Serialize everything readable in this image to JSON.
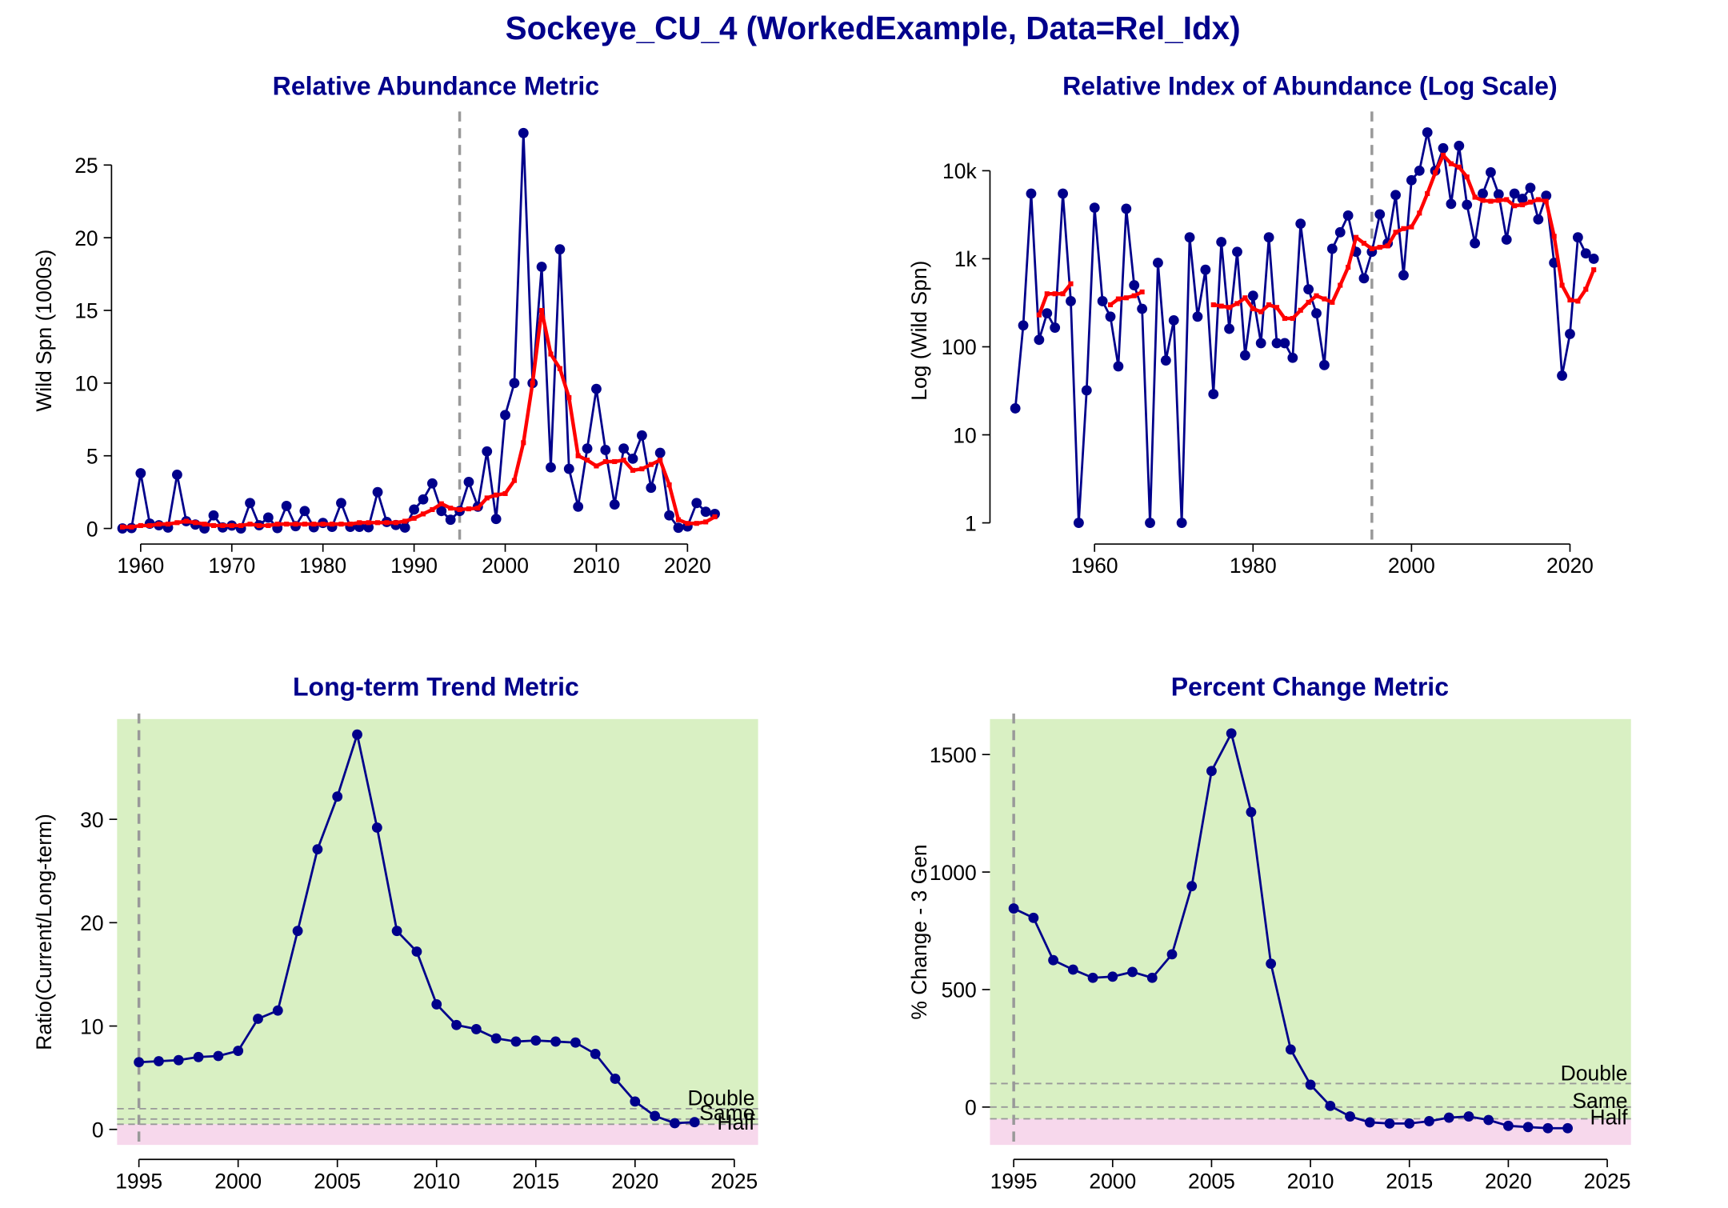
{
  "title": "Sockeye_CU_4 (WorkedExample, Data=Rel_Idx)",
  "chart_data": [
    {
      "type": "line",
      "title": "Relative Abundance Metric",
      "ylabel": "Wild Spn (1000s)",
      "x": [
        1958,
        1959,
        1960,
        1961,
        1962,
        1963,
        1964,
        1965,
        1966,
        1967,
        1968,
        1969,
        1970,
        1971,
        1972,
        1973,
        1974,
        1975,
        1976,
        1977,
        1978,
        1979,
        1980,
        1981,
        1982,
        1983,
        1984,
        1985,
        1986,
        1987,
        1988,
        1989,
        1990,
        1991,
        1992,
        1993,
        1994,
        1995,
        1996,
        1997,
        1998,
        1999,
        2000,
        2001,
        2002,
        2003,
        2004,
        2005,
        2006,
        2007,
        2008,
        2009,
        2010,
        2011,
        2012,
        2013,
        2014,
        2015,
        2016,
        2017,
        2018,
        2019,
        2020,
        2021,
        2022,
        2023
      ],
      "series": [
        {
          "color": "#00008b",
          "marker": "circle",
          "values": [
            0,
            0.03,
            3.8,
            0.33,
            0.22,
            0.06,
            3.7,
            0.5,
            0.27,
            0,
            0.9,
            0.07,
            0.2,
            0,
            1.75,
            0.22,
            0.75,
            0.03,
            1.55,
            0.16,
            1.2,
            0.08,
            0.38,
            0.11,
            1.75,
            0.11,
            0.11,
            0.08,
            2.5,
            0.45,
            0.24,
            0.06,
            1.3,
            2.0,
            3.1,
            1.2,
            0.6,
            1.2,
            3.2,
            1.5,
            5.3,
            0.65,
            7.8,
            10,
            27.2,
            10,
            18,
            4.2,
            19.2,
            4.1,
            1.5,
            5.5,
            9.6,
            5.4,
            1.65,
            5.5,
            4.8,
            6.4,
            2.8,
            5.2,
            0.9,
            0.05,
            0.14,
            1.75,
            1.15,
            1.0
          ]
        },
        {
          "color": "#ff0000",
          "marker": "square",
          "values": [
            0.1,
            0.1,
            0.2,
            0.2,
            0.3,
            0.3,
            0.4,
            0.5,
            0.4,
            0.3,
            0.2,
            0.2,
            0.2,
            0.2,
            0.3,
            0.2,
            0.2,
            0.3,
            0.3,
            0.3,
            0.3,
            0.3,
            0.3,
            0.3,
            0.3,
            0.3,
            0.4,
            0.4,
            0.4,
            0.4,
            0.4,
            0.5,
            0.7,
            1.0,
            1.3,
            1.7,
            1.4,
            1.3,
            1.35,
            1.4,
            2.1,
            2.3,
            2.4,
            3.3,
            5.9,
            10,
            15,
            12,
            11,
            9,
            5,
            4.7,
            4.3,
            4.6,
            4.6,
            4.7,
            4.0,
            4.1,
            4.4,
            4.7,
            3.0,
            0.6,
            0.35,
            0.35,
            0.45,
            0.8
          ]
        }
      ],
      "xlim": [
        1956.8,
        2025.3
      ],
      "ylim": [
        -1.07,
        28.3
      ],
      "xticks": [
        1960,
        1970,
        1980,
        1990,
        2000,
        2010,
        2020
      ],
      "yticks": [
        0,
        5,
        10,
        15,
        20,
        25
      ],
      "vline": 1995
    },
    {
      "type": "line",
      "title": "Relative Index of Abundance (Log Scale)",
      "ylabel": "Log (Wild Spn)",
      "log_scale": true,
      "x": [
        1950,
        1951,
        1952,
        1953,
        1954,
        1955,
        1956,
        1957,
        1958,
        1959,
        1960,
        1961,
        1962,
        1963,
        1964,
        1965,
        1966,
        1967,
        1968,
        1969,
        1970,
        1971,
        1972,
        1973,
        1974,
        1975,
        1976,
        1977,
        1978,
        1979,
        1980,
        1981,
        1982,
        1983,
        1984,
        1985,
        1986,
        1987,
        1988,
        1989,
        1990,
        1991,
        1992,
        1993,
        1994,
        1995,
        1996,
        1997,
        1998,
        1999,
        2000,
        2001,
        2002,
        2003,
        2004,
        2005,
        2006,
        2007,
        2008,
        2009,
        2010,
        2011,
        2012,
        2013,
        2014,
        2015,
        2016,
        2017,
        2018,
        2019,
        2020,
        2021,
        2022,
        2023
      ],
      "series": [
        {
          "color": "#00008b",
          "marker": "circle",
          "values": [
            20,
            175,
            5500,
            120,
            240,
            165,
            5500,
            330,
            1,
            32,
            3800,
            330,
            220,
            60,
            3700,
            500,
            270,
            1,
            900,
            70,
            200,
            1,
            1750,
            220,
            750,
            29,
            1550,
            160,
            1200,
            80,
            380,
            110,
            1750,
            110,
            110,
            75,
            2500,
            450,
            240,
            62,
            1300,
            2000,
            3100,
            1200,
            600,
            1200,
            3200,
            1500,
            5300,
            650,
            7800,
            10000,
            27200,
            10000,
            18000,
            4200,
            19200,
            4100,
            1500,
            5500,
            9600,
            5400,
            1650,
            5500,
            4800,
            6400,
            2800,
            5200,
            900,
            47,
            140,
            1750,
            1150,
            1000
          ]
        },
        {
          "color": "#ff0000",
          "marker": "square",
          "values": [
            null,
            null,
            null,
            230,
            400,
            400,
            400,
            520,
            null,
            null,
            null,
            null,
            300,
            350,
            360,
            380,
            420,
            null,
            null,
            null,
            null,
            null,
            null,
            null,
            null,
            300,
            290,
            280,
            310,
            360,
            270,
            250,
            300,
            280,
            210,
            210,
            260,
            320,
            380,
            350,
            320,
            500,
            800,
            1750,
            1500,
            1300,
            1350,
            1400,
            2000,
            2200,
            2300,
            3300,
            5500,
            9500,
            15000,
            12000,
            11000,
            8500,
            5000,
            4600,
            4500,
            4600,
            4700,
            4000,
            4100,
            4400,
            4700,
            4500,
            1800,
            500,
            340,
            330,
            450,
            750
          ]
        }
      ],
      "xlim": [
        1946.8,
        2027.7
      ],
      "ylim": [
        0.575,
        40700
      ],
      "xticks": [
        1960,
        1980,
        2000,
        2020
      ],
      "yticks": [
        1,
        10,
        100,
        {
          "value": 1000,
          "label": "1k"
        },
        {
          "value": 10000,
          "label": "10k"
        }
      ],
      "vline": 1995
    },
    {
      "type": "line",
      "title": "Long-term Trend Metric",
      "ylabel": "Ratio(Current/Long-term)",
      "x": [
        1995,
        1996,
        1997,
        1998,
        1999,
        2000,
        2001,
        2002,
        2003,
        2004,
        2005,
        2006,
        2007,
        2008,
        2009,
        2010,
        2011,
        2012,
        2013,
        2014,
        2015,
        2016,
        2017,
        2018,
        2019,
        2020,
        2021,
        2022,
        2023
      ],
      "series": [
        {
          "color": "#00008b",
          "marker": "circle",
          "values": [
            6.5,
            6.6,
            6.7,
            7.0,
            7.1,
            7.6,
            10.7,
            11.5,
            19.2,
            27.1,
            32.2,
            38.2,
            29.2,
            19.2,
            17.2,
            12.1,
            10.1,
            9.7,
            8.8,
            8.5,
            8.6,
            8.5,
            8.4,
            7.3,
            4.9,
            2.7,
            1.3,
            0.6,
            0.7
          ]
        }
      ],
      "xlim": [
        1993.9,
        2026.2
      ],
      "ylim": [
        -1.5,
        39.7
      ],
      "xticks": [
        1995,
        2000,
        2005,
        2010,
        2015,
        2020,
        2025
      ],
      "yticks": [
        0,
        10,
        20,
        30
      ],
      "vline": 1995,
      "reference_lines": [
        {
          "value": 2,
          "label": "Double"
        },
        {
          "value": 1,
          "label": "Same"
        },
        {
          "value": 0.5,
          "label": "Half"
        }
      ],
      "zones": {
        "boundary": 0.5,
        "above": "#d9f0c3",
        "below": "#f7d8ec"
      }
    },
    {
      "type": "line",
      "title": "Percent Change Metric",
      "ylabel": "% Change - 3 Gen",
      "x": [
        1995,
        1996,
        1997,
        1998,
        1999,
        2000,
        2001,
        2002,
        2003,
        2004,
        2005,
        2006,
        2007,
        2008,
        2009,
        2010,
        2011,
        2012,
        2013,
        2014,
        2015,
        2016,
        2017,
        2018,
        2019,
        2020,
        2021,
        2022,
        2023
      ],
      "series": [
        {
          "color": "#00008b",
          "marker": "circle",
          "values": [
            845,
            805,
            625,
            585,
            550,
            555,
            575,
            550,
            650,
            940,
            1430,
            1590,
            1255,
            610,
            245,
            95,
            5,
            -40,
            -65,
            -70,
            -70,
            -60,
            -45,
            -40,
            -55,
            -80,
            -85,
            -90,
            -90
          ]
        }
      ],
      "xlim": [
        1993.8,
        2026.2
      ],
      "ylim": [
        -161,
        1651
      ],
      "xticks": [
        1995,
        2000,
        2005,
        2010,
        2015,
        2020,
        2025
      ],
      "yticks": [
        0,
        500,
        1000,
        1500
      ],
      "vline": 1995,
      "reference_lines": [
        {
          "value": 100,
          "label": "Double"
        },
        {
          "value": 0,
          "label": "Same"
        },
        {
          "value": -50,
          "label": "Half"
        }
      ],
      "zones": {
        "boundary": -50,
        "above": "#d9f0c3",
        "below": "#f7d8ec"
      }
    }
  ]
}
